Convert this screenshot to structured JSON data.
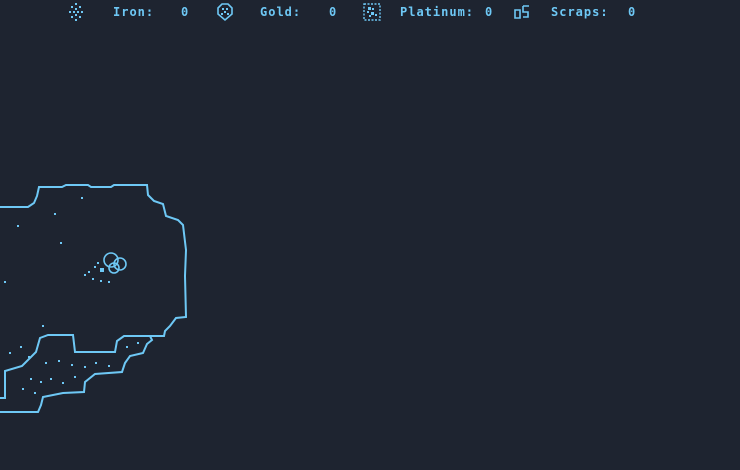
{
  "hud": {
    "resources": [
      {
        "name": "iron",
        "icon": "iron-ore-icon",
        "label": "Iron:",
        "value": "0"
      },
      {
        "name": "gold",
        "icon": "gold-ore-icon",
        "label": "Gold:",
        "value": "0"
      },
      {
        "name": "platinum",
        "icon": "platinum-ore-icon",
        "label": "Platinum:",
        "value": "0"
      },
      {
        "name": "scraps",
        "icon": "scraps-icon",
        "label": "Scraps:",
        "value": "0"
      }
    ]
  },
  "colors": {
    "background": "#1e2430",
    "accent": "#6ec8f5"
  }
}
